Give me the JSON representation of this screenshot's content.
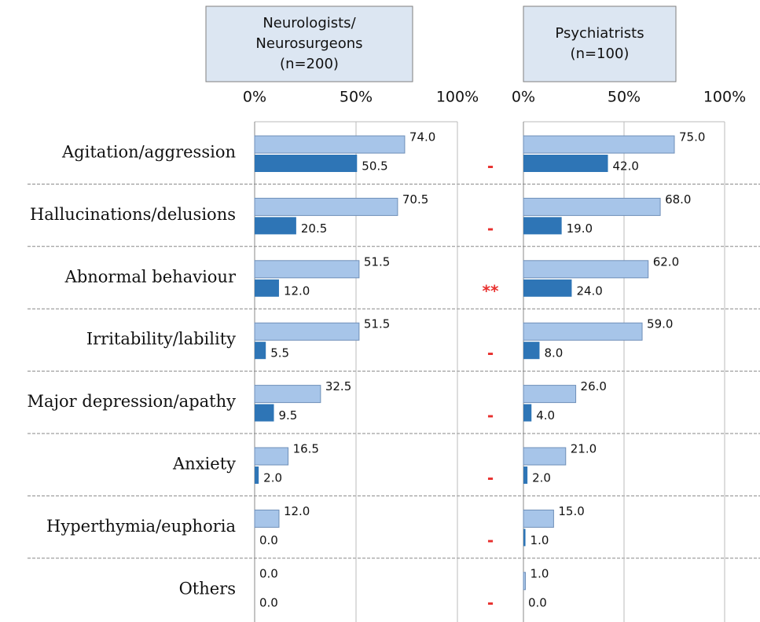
{
  "categories": [
    "Agitation/aggression",
    "Hallucinations/delusions",
    "Abnormal behaviour",
    "Irritability/lability",
    "Major depression/apathy",
    "Anxiety",
    "Hyperthymia/euphoria",
    "Others"
  ],
  "significance": [
    "-",
    "-",
    "**",
    "-",
    "-",
    "-",
    "-",
    "-"
  ],
  "chart_data": [
    {
      "type": "bar",
      "title": [
        "Neurologists/",
        "Neurosurgeons",
        "(n=200)"
      ],
      "series": [
        {
          "color": "#a7c5e9",
          "values": [
            74,
            70.5,
            51.5,
            51.5,
            32.5,
            16.5,
            12,
            0
          ],
          "value_labels": [
            "74.0",
            "70.5",
            "51.5",
            "51.5",
            "32.5",
            "16.5",
            "12.0",
            "0.0"
          ]
        },
        {
          "color": "#2e75b6",
          "values": [
            50.5,
            20.5,
            12,
            5.5,
            9.5,
            2,
            0,
            0
          ],
          "value_labels": [
            "50.5",
            "20.5",
            "12.0",
            "5.5",
            "9.5",
            "2.0",
            "0.0",
            "0.0"
          ]
        }
      ],
      "xlim": [
        0,
        100
      ],
      "xticks": [
        {
          "value": 0,
          "label": "0%"
        },
        {
          "value": 50,
          "label": "50%"
        },
        {
          "value": 100,
          "label": "100%"
        }
      ],
      "grid": true
    },
    {
      "type": "bar",
      "title": [
        "Psychiatrists",
        "(n=100)"
      ],
      "series": [
        {
          "color": "#a7c5e9",
          "values": [
            75,
            68,
            62,
            59,
            26,
            21,
            15,
            1
          ],
          "value_labels": [
            "75.0",
            "68.0",
            "62.0",
            "59.0",
            "26.0",
            "21.0",
            "15.0",
            "1.0"
          ]
        },
        {
          "color": "#2e75b6",
          "values": [
            42,
            19,
            24,
            8,
            4,
            2,
            1,
            0
          ],
          "value_labels": [
            "42.0",
            "19.0",
            "24.0",
            "8.0",
            "4.0",
            "2.0",
            "1.0",
            "0.0"
          ]
        }
      ],
      "xlim": [
        0,
        100
      ],
      "xticks": [
        {
          "value": 0,
          "label": "0%"
        },
        {
          "value": 50,
          "label": "50%"
        },
        {
          "value": 100,
          "label": "100%"
        }
      ],
      "grid": true
    }
  ]
}
